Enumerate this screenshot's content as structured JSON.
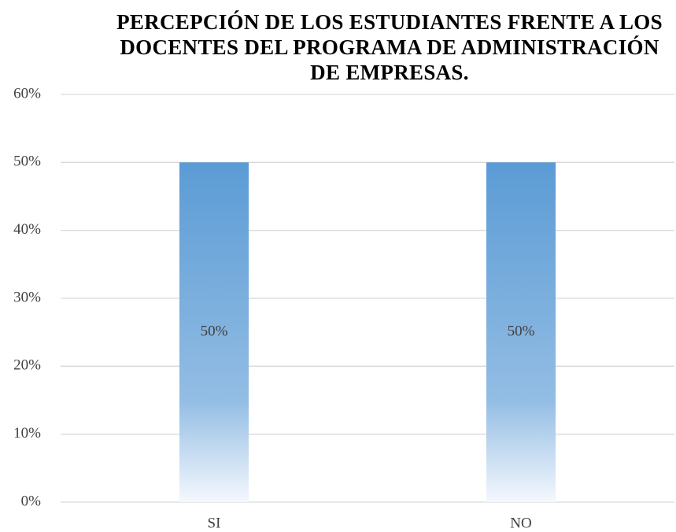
{
  "chart_data": {
    "type": "bar",
    "title": "PERCEPCIÓN DE LOS ESTUDIANTES FRENTE A LOS DOCENTES DEL PROGRAMA DE ADMINISTRACIÓN DE EMPRESAS.",
    "categories": [
      "SI",
      "NO"
    ],
    "values": [
      50,
      50
    ],
    "value_labels": [
      "50%",
      "50%"
    ],
    "color": "#5b9bd5",
    "ylim": [
      0,
      60
    ],
    "yticks": [
      {
        "value": 0,
        "label": "0%"
      },
      {
        "value": 10,
        "label": "10%"
      },
      {
        "value": 20,
        "label": "20%"
      },
      {
        "value": 30,
        "label": "30%"
      },
      {
        "value": 40,
        "label": "40%"
      },
      {
        "value": 50,
        "label": "50%"
      },
      {
        "value": 60,
        "label": "60%"
      }
    ],
    "grid": true
  }
}
